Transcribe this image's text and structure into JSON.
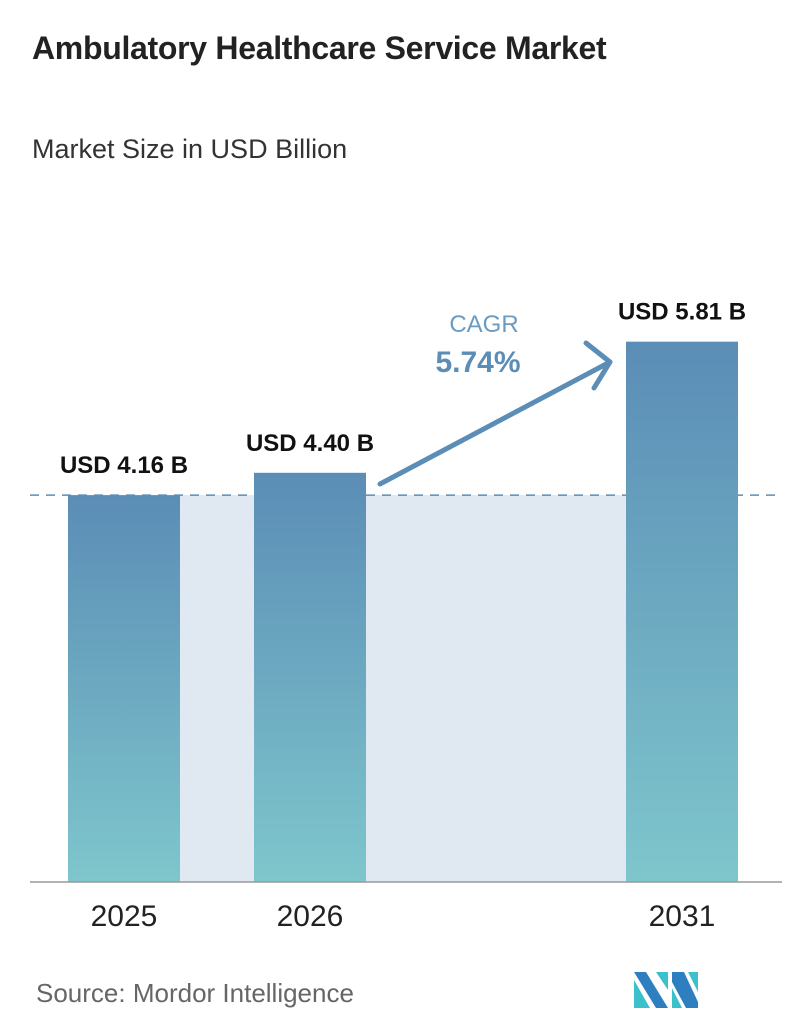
{
  "chart_data": {
    "type": "bar",
    "title": "Ambulatory Healthcare Service Market",
    "subtitle": "Market Size in USD Billion",
    "categories": [
      "2025",
      "2026",
      "2031"
    ],
    "values": [
      4.16,
      4.4,
      5.81
    ],
    "value_labels": [
      "USD 4.16 B",
      "USD 4.40 B",
      "USD 5.81 B"
    ],
    "annotation": {
      "label": "CAGR",
      "value": "5.74%"
    },
    "xlabel": "",
    "ylabel": "",
    "ylim": [
      0,
      6
    ],
    "grid": false
  },
  "source": "Source:  Mordor Intelligence",
  "colors": {
    "bar_top": "#5b8db6",
    "bar_bottom": "#7ec6cc",
    "shade": "#e0e9f1",
    "accent": "#5b8db6"
  }
}
